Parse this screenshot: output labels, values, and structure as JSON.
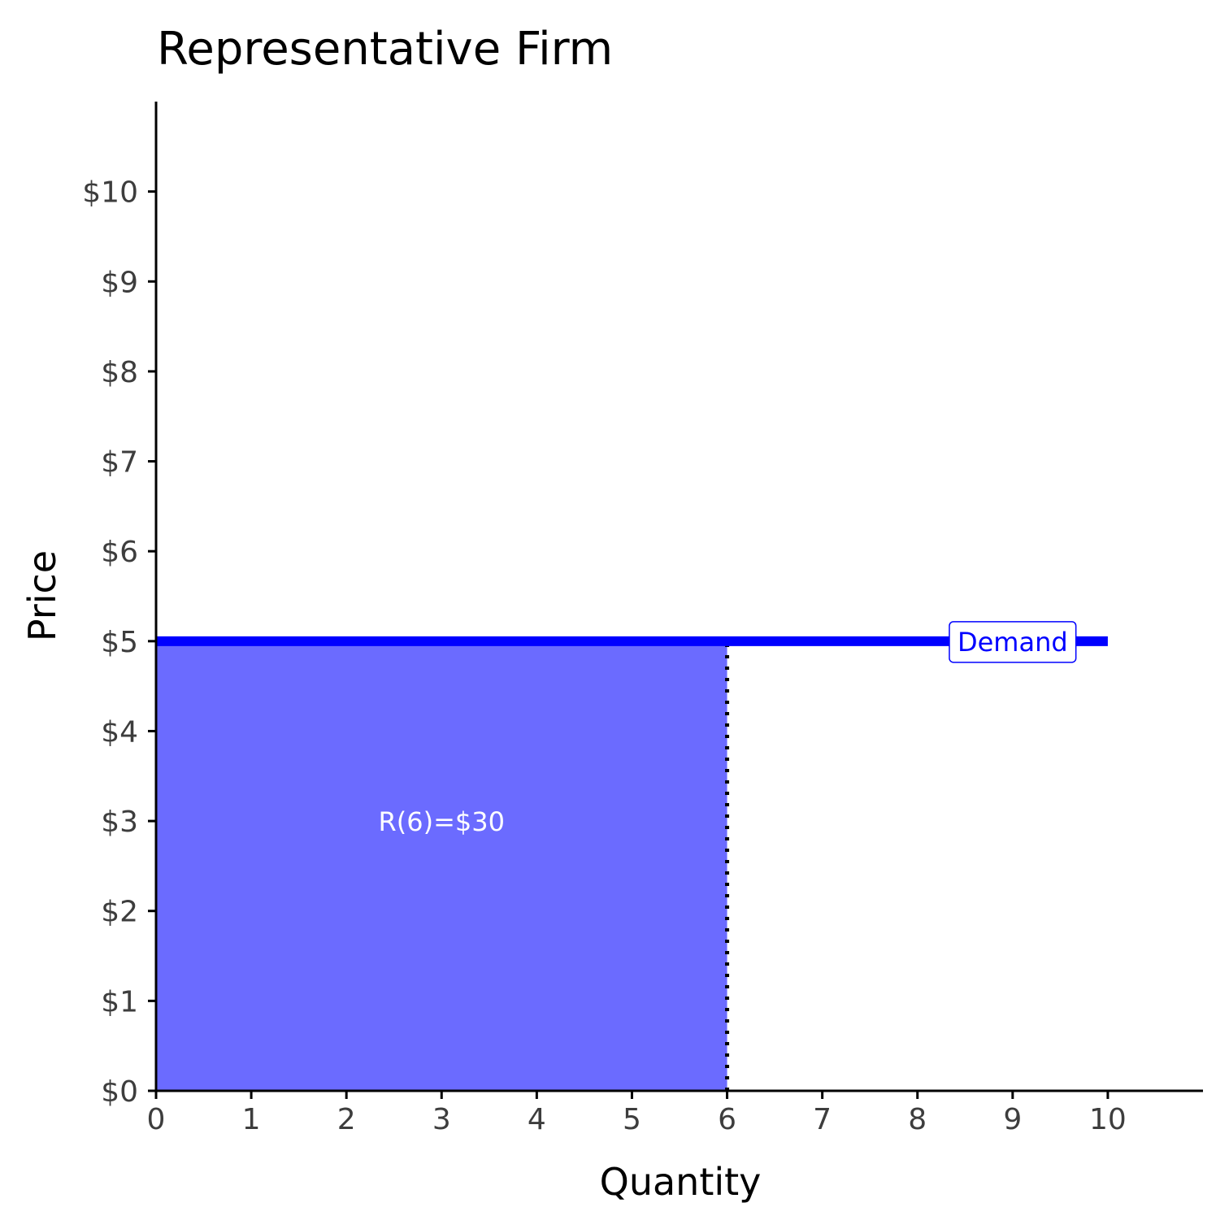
{
  "chart_data": {
    "type": "line",
    "title": "Representative Firm",
    "xlabel": "Quantity",
    "ylabel": "Price",
    "xlim": [
      0,
      11
    ],
    "ylim": [
      0,
      11
    ],
    "x_ticks": [
      0,
      1,
      2,
      3,
      4,
      5,
      6,
      7,
      8,
      9,
      10
    ],
    "x_tick_labels": [
      "0",
      "1",
      "2",
      "3",
      "4",
      "5",
      "6",
      "7",
      "8",
      "9",
      "10"
    ],
    "y_ticks": [
      0,
      1,
      2,
      3,
      4,
      5,
      6,
      7,
      8,
      9,
      10
    ],
    "y_tick_labels": [
      "$0",
      "$1",
      "$2",
      "$3",
      "$4",
      "$5",
      "$6",
      "$7",
      "$8",
      "$9",
      "$10"
    ],
    "grid": false,
    "series": [
      {
        "name": "Demand",
        "x": [
          0,
          10
        ],
        "y": [
          5,
          5
        ],
        "color": "#0000ff"
      }
    ],
    "shaded_region": {
      "x": [
        0,
        6
      ],
      "y": [
        0,
        5
      ],
      "color": "#6b6bff",
      "label": "R(6)=$30",
      "label_x": 3,
      "label_y": 3
    },
    "reference_lines": [
      {
        "x": 6,
        "y_from": 0,
        "y_to": 5,
        "style": "dotted",
        "color": "#000000"
      }
    ],
    "curve_labels": [
      {
        "text": "Demand",
        "x": 9,
        "y": 5,
        "color": "#0000ff"
      }
    ]
  }
}
